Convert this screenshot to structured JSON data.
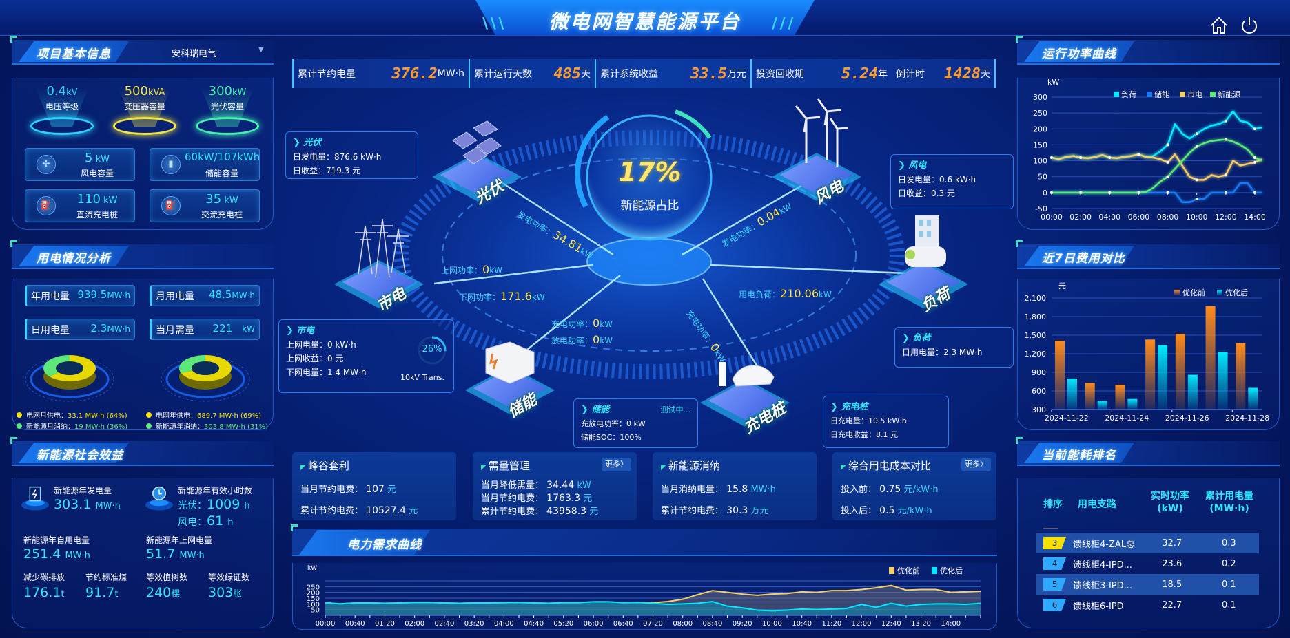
{
  "header": {
    "title": "微电网智慧能源平台",
    "home_icon": "home-icon",
    "power_icon": "power-icon"
  },
  "colors": {
    "accent": "#2fe6ff",
    "orange": "#ff9a2e",
    "yellow": "#ffe64a",
    "green": "#5ee87a",
    "blue": "#1a78f0"
  },
  "project": {
    "title": "项目基本信息",
    "company": "安科瑞电气",
    "cones": [
      {
        "value": "0.4",
        "unit": "kV",
        "label": "电压等级",
        "color": "#2fd2ff"
      },
      {
        "value": "500",
        "unit": "kVA",
        "label": "变压器容量",
        "color": "#f3e640"
      },
      {
        "value": "300",
        "unit": "kW",
        "label": "光伏容量",
        "color": "#45f0b0"
      }
    ],
    "cards": [
      {
        "value": "5",
        "unit": " kW",
        "label": "风电容量",
        "icon": "wind-turbine-icon"
      },
      {
        "value": "60kW/107kWh",
        "unit": "",
        "label": "储能容量",
        "icon": "battery-icon"
      },
      {
        "value": "110",
        "unit": " kW",
        "label": "直流充电桩",
        "icon": "charger-icon"
      },
      {
        "value": "35",
        "unit": " kW",
        "label": "交流充电桩",
        "icon": "charger-icon"
      }
    ]
  },
  "usage": {
    "title": "用电情况分析",
    "cards": [
      {
        "label": "年用电量",
        "value": "939.5",
        "unit": "MW·h"
      },
      {
        "label": "月用电量",
        "value": "48.5",
        "unit": "MW·h"
      },
      {
        "label": "日用电量",
        "value": "2.3",
        "unit": "MW·h"
      },
      {
        "label": "当月需量",
        "value": "221",
        "unit": "kW"
      }
    ],
    "donuts": [
      {
        "grid_pct": 64,
        "legend": [
          {
            "label": "电网月供电：",
            "value": "33.1 MW·h (64%)"
          },
          {
            "label": "新能源月消纳：",
            "value": "19 MW·h (36%)"
          }
        ]
      },
      {
        "grid_pct": 69,
        "legend": [
          {
            "label": "电网年供电：",
            "value": "689.7 MW·h (69%)"
          },
          {
            "label": "新能源年消纳：",
            "value": "303.8 MW·h (31%)"
          }
        ]
      }
    ]
  },
  "social": {
    "title": "新能源社会效益",
    "gen_label": "新能源年发电量",
    "gen_value": "303.1",
    "gen_unit": "MW·h",
    "hours_label": "新能源年有效小时数",
    "pv_label": "光伏：",
    "pv_value": "1009",
    "wind_label": "风电：",
    "wind_value": "61",
    "hours_unit": "h",
    "self_label": "新能源年自用电量",
    "self_value": "251.4",
    "self_unit": "MW·h",
    "grid_label": "新能源年上网电量",
    "grid_value": "51.7",
    "grid_unit": "MW·h",
    "carbon_label": "减少碳排放",
    "carbon_value": "176.1",
    "carbon_unit": "t",
    "coal_label": "节约标准煤",
    "coal_value": "91.7",
    "coal_unit": "t",
    "tree_label": "等效植树数",
    "tree_value": "240",
    "tree_unit": "棵",
    "cert_label": "等效绿证数",
    "cert_value": "303",
    "cert_unit": "张"
  },
  "stats": [
    {
      "label": "累计节约电量",
      "value": "376.2",
      "unit": "MW·h"
    },
    {
      "label": "累计运行天数",
      "value": "485",
      "unit": "天"
    },
    {
      "label": "累计系统收益",
      "value": "33.5",
      "unit": "万元"
    },
    {
      "label": "投资回收期",
      "value": "5.24",
      "unit": "年"
    },
    {
      "label": "倒计时",
      "value": "1428",
      "unit": "天"
    }
  ],
  "center": {
    "ratio": "17%",
    "ratio_label": "新能源占比",
    "nodes": {
      "pv": "光伏",
      "wind": "风电",
      "grid": "市电",
      "load": "负荷",
      "storage": "储能",
      "charger": "充电桩"
    },
    "pv_box": {
      "title": "光伏",
      "l1": "日发电量：876.6 kW·h",
      "l2": "日收益：719.3 元"
    },
    "wind_box": {
      "title": "风电",
      "l1": "日发电量：0.6 kW·h",
      "l2": "日收益：0.3 元"
    },
    "grid_box": {
      "title": "市电",
      "l1": "上网电量：0 kW·h",
      "l2": "上网收益：0 元",
      "l3": "下网电量：1.4 MW·h",
      "trans_pct": "26%",
      "trans_pct_value": 26,
      "trans_label": "10kV Trans."
    },
    "load_box": {
      "title": "负荷",
      "l1": "日用电量：2.3 MW·h"
    },
    "storage_box": {
      "title": "储能",
      "status": "测试中...",
      "l1": "充放电功率：0 kW",
      "l2": "储能SOC：100%"
    },
    "charger_box": {
      "title": "充电桩",
      "l1": "日充电量：10.5 kW·h",
      "l2": "日充电收益：8.1 元"
    },
    "flows": {
      "pv_label": "发电功率：",
      "pv_value": "34.81",
      "wind_label": "发电功率：",
      "wind_value": "0.04",
      "up_label": "上网功率：",
      "up_value": "0",
      "down_label": "下网功率：",
      "down_value": "171.6",
      "load_label": "用电负荷：",
      "load_value": "210.06",
      "st_charge_label": "充电功率：",
      "st_charge_value": "0",
      "st_discharge_label": "放电功率：",
      "st_discharge_value": "0",
      "ev_label": "充电功率：",
      "ev_value": "0",
      "unit": "kW"
    }
  },
  "bottom_cards": [
    {
      "title": "峰谷套利",
      "rows": [
        {
          "label": "当月节约电费：",
          "value": "107",
          "unit": "元"
        },
        {
          "label": "累计节约电费：",
          "value": "10527.4",
          "unit": "元"
        }
      ]
    },
    {
      "title": "需量管理",
      "more": "更多〉",
      "rows": [
        {
          "label": "当月降低需量：",
          "value": "34.44",
          "unit": "kW"
        },
        {
          "label": "当月节约电费：",
          "value": "1763.3",
          "unit": "元"
        },
        {
          "label": "累计节约电费：",
          "value": "43958.3",
          "unit": "元"
        }
      ]
    },
    {
      "title": "新能源消纳",
      "rows": [
        {
          "label": "当月消纳电量：",
          "value": "15.8",
          "unit": "MW·h"
        },
        {
          "label": "累计节约电费：",
          "value": "30.3",
          "unit": "万元"
        }
      ]
    },
    {
      "title": "综合用电成本对比",
      "more": "更多〉",
      "rows": [
        {
          "label": "投入前：",
          "value": "0.75",
          "unit": "元/kW·h"
        },
        {
          "label": "投入后：",
          "value": "0.5",
          "unit": "元/kW·h"
        }
      ]
    }
  ],
  "ranking": {
    "title": "当前能耗排名",
    "headers": [
      "排序",
      "用电支路",
      "实时功率\n(kW)",
      "累计用电量\n(MW·h)"
    ],
    "rows": [
      {
        "rank": "3",
        "name": "馈线柜4-ZAL总",
        "power": "32.7",
        "energy": "0.3"
      },
      {
        "rank": "4",
        "name": "馈线柜4-IPD...",
        "power": "23.6",
        "energy": "0.2"
      },
      {
        "rank": "5",
        "name": "馈线柜3-IPD...",
        "power": "18.5",
        "energy": "0.1"
      },
      {
        "rank": "6",
        "name": "馈线柜6-IPD",
        "power": "22.7",
        "energy": "0.1"
      }
    ]
  },
  "chart_data": [
    {
      "id": "power",
      "title": "运行功率曲线",
      "type": "line",
      "ylabel": "kW",
      "ylim": [
        -50,
        300
      ],
      "yticks": [
        -50,
        0,
        50,
        100,
        150,
        200,
        250,
        300
      ],
      "grid": true,
      "legend": "top",
      "x": [
        "00:00",
        "00:30",
        "01:00",
        "01:30",
        "02:00",
        "02:30",
        "03:00",
        "03:30",
        "04:00",
        "04:30",
        "05:00",
        "05:30",
        "06:00",
        "06:30",
        "07:00",
        "07:30",
        "08:00",
        "08:30",
        "09:00",
        "09:30",
        "10:00",
        "10:30",
        "11:00",
        "11:30",
        "12:00",
        "12:30",
        "13:00",
        "13:30",
        "14:00",
        "14:30"
      ],
      "xticks": [
        "00:00",
        "02:00",
        "04:00",
        "06:00",
        "08:00",
        "10:00",
        "12:00",
        "14:00"
      ],
      "series": [
        {
          "name": "负荷",
          "color": "#00eaff",
          "values": [
            110,
            105,
            112,
            115,
            110,
            108,
            112,
            118,
            110,
            108,
            112,
            115,
            120,
            112,
            115,
            130,
            150,
            215,
            185,
            170,
            185,
            200,
            210,
            215,
            225,
            255,
            225,
            220,
            200,
            205
          ]
        },
        {
          "name": "储能",
          "color": "#1a7cf0",
          "values": [
            0,
            0,
            0,
            0,
            0,
            0,
            0,
            0,
            0,
            0,
            0,
            0,
            0,
            0,
            0,
            0,
            0,
            0,
            -30,
            -30,
            -20,
            -20,
            0,
            0,
            0,
            0,
            30,
            30,
            0,
            0
          ]
        },
        {
          "name": "市电",
          "color": "#f5cf6a",
          "values": [
            110,
            105,
            112,
            115,
            110,
            108,
            112,
            118,
            110,
            108,
            112,
            115,
            120,
            112,
            110,
            105,
            95,
            120,
            85,
            50,
            40,
            40,
            55,
            50,
            55,
            100,
            85,
            90,
            95,
            105
          ]
        },
        {
          "name": "新能源",
          "color": "#5ee87a",
          "values": [
            0,
            0,
            0,
            0,
            0,
            0,
            0,
            0,
            0,
            0,
            0,
            0,
            0,
            2,
            15,
            35,
            50,
            75,
            100,
            125,
            145,
            155,
            162,
            165,
            167,
            160,
            150,
            135,
            110,
            100
          ]
        }
      ]
    },
    {
      "id": "cost",
      "title": "近7日费用对比",
      "type": "bar",
      "ylabel": "元",
      "ylim": [
        300,
        2100
      ],
      "yticks": [
        "300",
        "600",
        "900",
        "1,200",
        "1,500",
        "1,800",
        "2,100"
      ],
      "grid": true,
      "legend": "top-right",
      "categories": [
        "2024-11-22",
        "2024-11-23",
        "2024-11-24",
        "2024-11-25",
        "2024-11-26",
        "2024-11-27",
        "2024-11-28"
      ],
      "xticks": [
        "2024-11-22",
        "2024-11-24",
        "2024-11-26",
        "2024-11-28"
      ],
      "series": [
        {
          "name": "优化前",
          "color": "#ff8c1a",
          "values": [
            1410,
            730,
            700,
            1430,
            1520,
            1970,
            1370
          ]
        },
        {
          "name": "优化后",
          "color": "#00eaff",
          "values": [
            800,
            440,
            470,
            1340,
            860,
            1230,
            650
          ]
        }
      ]
    },
    {
      "id": "demand",
      "title": "电力需求曲线",
      "type": "area",
      "ylabel": "kW",
      "ylim": [
        0,
        300
      ],
      "yticks": [
        50,
        100,
        150,
        200,
        250
      ],
      "grid": true,
      "legend": "top-right",
      "x": [
        "00:00",
        "00:20",
        "00:40",
        "01:00",
        "01:20",
        "01:40",
        "02:00",
        "02:20",
        "02:40",
        "03:00",
        "03:20",
        "03:40",
        "04:00",
        "04:20",
        "04:40",
        "05:00",
        "05:20",
        "05:40",
        "06:00",
        "06:20",
        "06:40",
        "07:00",
        "07:20",
        "07:40",
        "08:00",
        "08:20",
        "08:40",
        "09:00",
        "09:20",
        "09:40",
        "10:00",
        "10:20",
        "10:40",
        "11:00",
        "11:20",
        "11:40",
        "12:00",
        "12:20",
        "12:40",
        "13:00",
        "13:20",
        "13:40",
        "14:00",
        "14:20",
        "14:40"
      ],
      "xticks": [
        "00:00",
        "00:40",
        "01:20",
        "02:00",
        "02:40",
        "03:20",
        "04:00",
        "04:40",
        "05:20",
        "06:00",
        "06:40",
        "07:20",
        "08:00",
        "08:40",
        "09:20",
        "10:00",
        "10:40",
        "11:20",
        "12:00",
        "12:40",
        "13:20",
        "14:00"
      ],
      "series": [
        {
          "name": "优化前",
          "color": "#f5cf6a",
          "values": [
            110,
            100,
            108,
            108,
            105,
            108,
            112,
            112,
            108,
            105,
            108,
            108,
            110,
            112,
            108,
            105,
            110,
            110,
            118,
            118,
            110,
            112,
            110,
            120,
            140,
            180,
            215,
            200,
            185,
            175,
            185,
            190,
            205,
            200,
            215,
            215,
            225,
            240,
            260,
            220,
            225,
            225,
            200,
            205,
            210
          ]
        },
        {
          "name": "优化后",
          "color": "#00eaff",
          "values": [
            110,
            100,
            108,
            108,
            105,
            108,
            112,
            112,
            108,
            105,
            108,
            108,
            110,
            112,
            108,
            105,
            110,
            110,
            118,
            118,
            110,
            112,
            105,
            95,
            100,
            105,
            120,
            80,
            65,
            45,
            40,
            45,
            55,
            50,
            55,
            60,
            95,
            70,
            105,
            80,
            95,
            100,
            100,
            95,
            105
          ]
        }
      ]
    }
  ]
}
